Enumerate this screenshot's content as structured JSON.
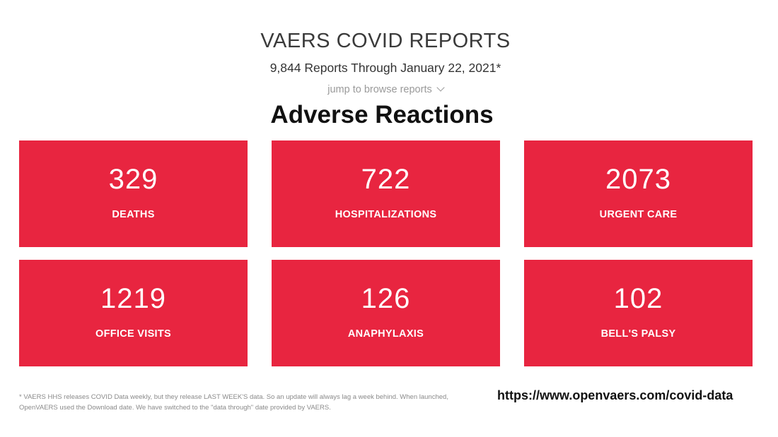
{
  "header": {
    "title": "VAERS COVID REPORTS",
    "subtitle": "9,844 Reports Through January 22, 2021*",
    "jump_link": "jump to browse reports"
  },
  "section": {
    "heading": "Adverse Reactions"
  },
  "stats": [
    {
      "value": "329",
      "label": "DEATHS"
    },
    {
      "value": "722",
      "label": "HOSPITALIZATIONS"
    },
    {
      "value": "2073",
      "label": "URGENT CARE"
    },
    {
      "value": "1219",
      "label": "OFFICE VISITS"
    },
    {
      "value": "126",
      "label": "ANAPHYLAXIS"
    },
    {
      "value": "102",
      "label": "BELL'S PALSY"
    }
  ],
  "footer": {
    "note": "* VAERS HHS releases COVID Data weekly, but they release LAST WEEK'S data. So an update will always lag a week behind. When launched, OpenVAERS used the Download date. We have switched to the \"data through\" date provided by VAERS.",
    "url": "https://www.openvaers.com/covid-data"
  },
  "colors": {
    "card_background": "#e82540",
    "card_text": "#ffffff"
  }
}
